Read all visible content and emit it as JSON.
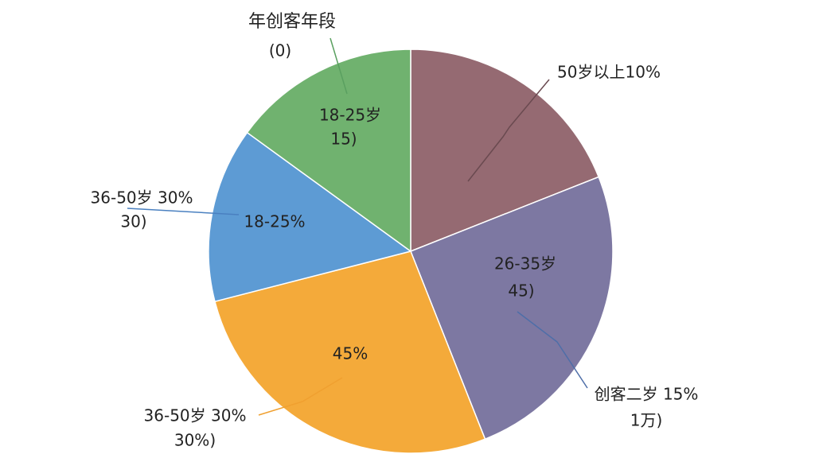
{
  "chart_data": {
    "type": "pie",
    "categories": [
      null,
      null,
      null,
      null,
      null
    ],
    "values": [
      19,
      25,
      27,
      14,
      15
    ],
    "colors": [
      "#956a72",
      "#7d78a2",
      "#f4aa3a",
      "#5d9bd4",
      "#70b26f"
    ],
    "annotations": [
      "年创客年段",
      "(0)",
      "18-25岁",
      "15)",
      "50岁以上10%",
      "26-35岁",
      "45)",
      "创客二岁 15%",
      "1万)",
      "36-50岁 30%",
      "30)",
      "18-25%",
      "45%",
      "36-50岁 30%",
      "30%)"
    ]
  }
}
